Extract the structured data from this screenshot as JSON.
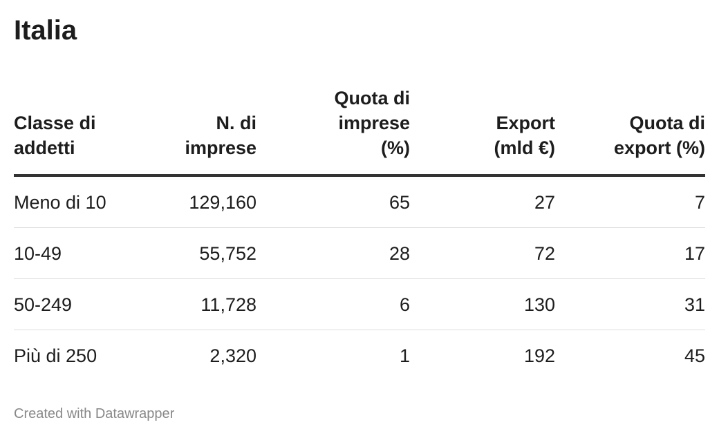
{
  "title": "Italia",
  "table": {
    "header": [
      "Classe di addetti",
      "N. di imprese",
      "Quota di imprese (%)",
      "Export (mld €)",
      "Quota di export (%)"
    ],
    "rows": [
      [
        "Meno di 10",
        "129,160",
        "65",
        "27",
        "7"
      ],
      [
        "10-49",
        "55,752",
        "28",
        "72",
        "17"
      ],
      [
        "50-249",
        "11,728",
        "6",
        "130",
        "31"
      ],
      [
        "Più di 250",
        "2,320",
        "1",
        "192",
        "45"
      ]
    ]
  },
  "footer": "Created with Datawrapper"
}
